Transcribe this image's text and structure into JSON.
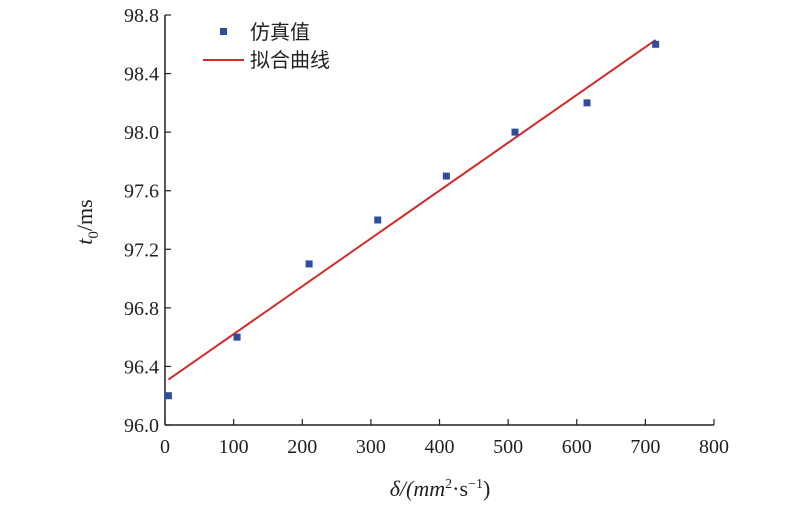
{
  "chart_data": {
    "type": "scatter",
    "xlabel": {
      "main": "δ/(mm",
      "sup1": "2",
      "mid": "·s",
      "sup2": "−1",
      "end": ")"
    },
    "ylabel": {
      "main": "t",
      "sub": "0",
      "unit": "/ms"
    },
    "xlim": [
      0,
      800
    ],
    "ylim": [
      96.0,
      98.8
    ],
    "x_ticks": [
      "0",
      "100",
      "200",
      "300",
      "400",
      "500",
      "600",
      "700",
      "800"
    ],
    "y_ticks": [
      "96.0",
      "96.4",
      "96.8",
      "97.2",
      "97.6",
      "98.0",
      "98.4",
      "98.8"
    ],
    "grid": false,
    "legend_position": "top-left",
    "series": [
      {
        "name": "仿真值",
        "kind": "scatter",
        "color": "#2e4d9b",
        "x": [
          5,
          105,
          210,
          310,
          410,
          510,
          615,
          715
        ],
        "y": [
          96.2,
          96.6,
          97.1,
          97.4,
          97.7,
          98.0,
          98.2,
          98.6
        ]
      },
      {
        "name": "拟合曲线",
        "kind": "line",
        "color": "#d12b2b",
        "x": [
          5,
          715
        ],
        "y": [
          96.31,
          98.63
        ]
      }
    ]
  }
}
